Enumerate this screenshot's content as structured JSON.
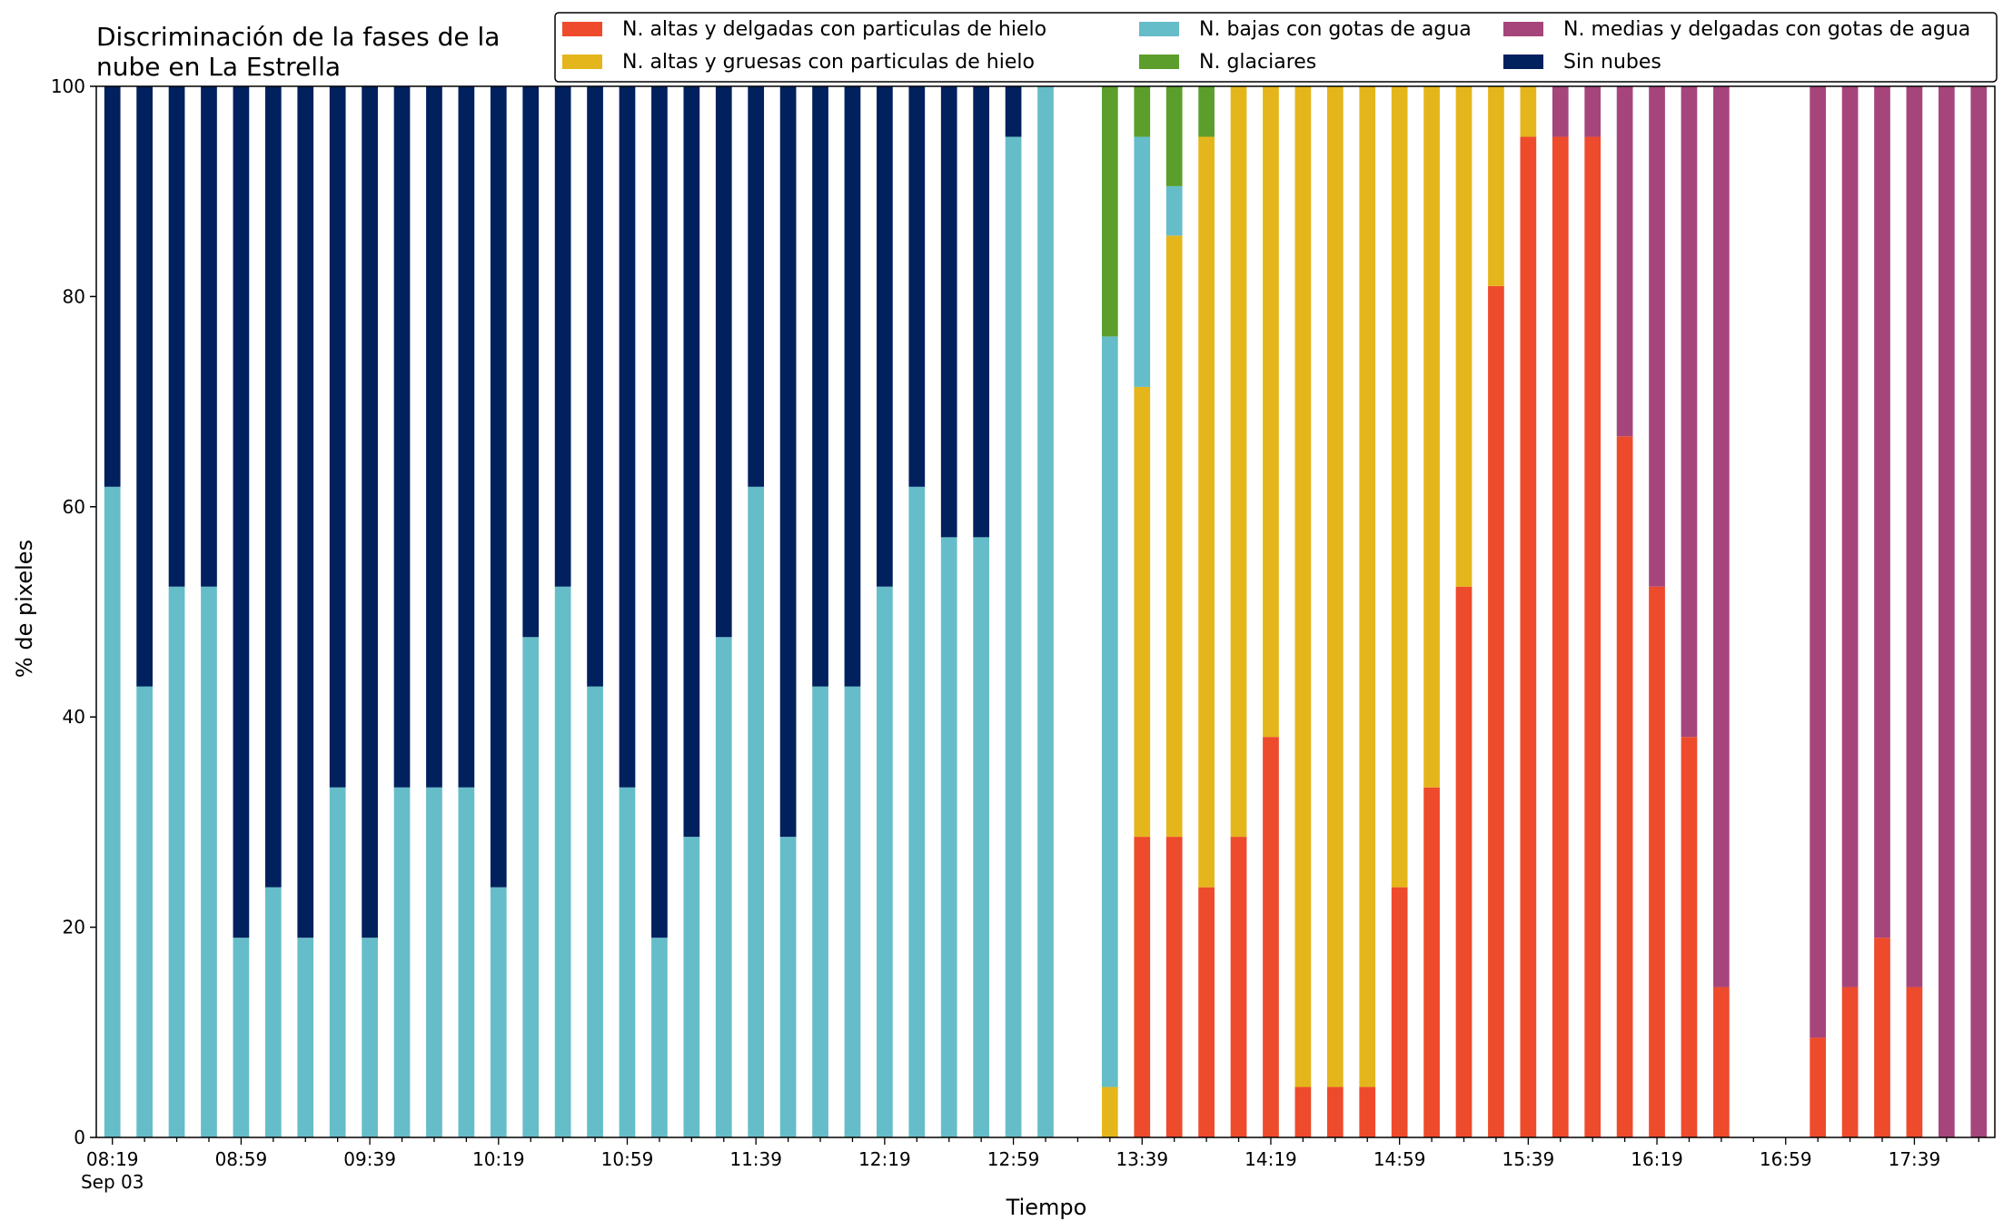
{
  "chart_data": {
    "type": "bar",
    "stacked": true,
    "title_lines": [
      "Discriminación de la fases de la",
      "nube en La Estrella"
    ],
    "xlabel": "Tiempo",
    "ylabel": "% de pixeles",
    "ylim": [
      0,
      100
    ],
    "yticks": [
      0,
      20,
      40,
      60,
      80,
      100
    ],
    "grid": false,
    "legend_placement": "top-right",
    "x_start": "08:19",
    "x_interval_minutes": 10,
    "x_tick_labels": [
      "08:19",
      "08:59",
      "09:39",
      "10:19",
      "10:59",
      "11:39",
      "12:19",
      "12:59",
      "13:39",
      "14:19",
      "14:59",
      "15:39",
      "16:19",
      "16:59",
      "17:39"
    ],
    "x_sublabel": "Sep 03",
    "categories": [
      "08:19",
      "08:29",
      "08:39",
      "08:49",
      "08:59",
      "09:09",
      "09:19",
      "09:29",
      "09:39",
      "09:49",
      "09:59",
      "10:09",
      "10:19",
      "10:29",
      "10:39",
      "10:49",
      "10:59",
      "11:09",
      "11:19",
      "11:29",
      "11:39",
      "11:49",
      "11:59",
      "12:09",
      "12:19",
      "12:29",
      "12:39",
      "12:49",
      "12:59",
      "13:09",
      "13:19",
      "13:29",
      "13:39",
      "13:49",
      "13:59",
      "14:09",
      "14:19",
      "14:29",
      "14:39",
      "14:49",
      "14:59",
      "15:09",
      "15:19",
      "15:29",
      "15:39",
      "15:49",
      "15:59",
      "16:09",
      "16:19",
      "16:29",
      "16:39",
      "16:49",
      "16:59",
      "17:09",
      "17:19",
      "17:29",
      "17:39",
      "17:49",
      "17:59"
    ],
    "series": [
      {
        "name": "N. altas y delgadas con particulas de hielo",
        "color": "#ee4a2c",
        "values": [
          0,
          0,
          0,
          0,
          0,
          0,
          0,
          0,
          0,
          0,
          0,
          0,
          0,
          0,
          0,
          0,
          0,
          0,
          0,
          0,
          0,
          0,
          0,
          0,
          0,
          0,
          0,
          0,
          0,
          0,
          0,
          0,
          28.6,
          28.6,
          23.8,
          28.6,
          38.1,
          4.8,
          4.8,
          4.8,
          23.8,
          33.3,
          52.4,
          81.0,
          95.2,
          95.2,
          95.2,
          66.7,
          52.4,
          38.1,
          14.3,
          0,
          0,
          9.5,
          14.3,
          19.0,
          14.3,
          0,
          0
        ]
      },
      {
        "name": "N. altas y gruesas con particulas de hielo",
        "color": "#e5b61b",
        "values": [
          0,
          0,
          0,
          0,
          0,
          0,
          0,
          0,
          0,
          0,
          0,
          0,
          0,
          0,
          0,
          0,
          0,
          0,
          0,
          0,
          0,
          0,
          0,
          0,
          0,
          0,
          0,
          0,
          0,
          0,
          0,
          4.8,
          42.8,
          57.2,
          71.4,
          71.4,
          61.9,
          95.2,
          95.2,
          95.2,
          76.2,
          66.7,
          47.6,
          19.0,
          4.8,
          0,
          0,
          0,
          0,
          0,
          0,
          0,
          0,
          0,
          0,
          0,
          0,
          0,
          0
        ]
      },
      {
        "name": "N. bajas con gotas de agua",
        "color": "#65bdc9",
        "values": [
          61.9,
          42.9,
          52.4,
          52.4,
          19.0,
          23.8,
          19.0,
          33.3,
          19.0,
          33.3,
          33.3,
          33.3,
          23.8,
          47.6,
          52.4,
          42.9,
          33.3,
          19.0,
          28.6,
          47.6,
          61.9,
          28.6,
          42.9,
          42.9,
          52.4,
          61.9,
          57.1,
          57.1,
          95.2,
          100,
          0,
          71.4,
          23.8,
          4.7,
          0,
          0,
          0,
          0,
          0,
          0,
          0,
          0,
          0,
          0,
          0,
          0,
          0,
          0,
          0,
          0,
          0,
          0,
          0,
          0,
          0,
          0,
          0,
          0,
          0
        ]
      },
      {
        "name": "N. medias y delgadas con gotas de agua",
        "color": "#a6457c",
        "values": [
          0,
          0,
          0,
          0,
          0,
          0,
          0,
          0,
          0,
          0,
          0,
          0,
          0,
          0,
          0,
          0,
          0,
          0,
          0,
          0,
          0,
          0,
          0,
          0,
          0,
          0,
          0,
          0,
          0,
          0,
          0,
          0,
          0,
          0,
          0,
          0,
          0,
          0,
          0,
          0,
          0,
          0,
          0,
          0,
          0,
          4.8,
          4.8,
          33.3,
          47.6,
          61.9,
          85.7,
          0,
          0,
          90.5,
          85.7,
          81.0,
          85.7,
          100,
          100
        ]
      },
      {
        "name": "N. glaciares",
        "color": "#5c9e2c",
        "values": [
          0,
          0,
          0,
          0,
          0,
          0,
          0,
          0,
          0,
          0,
          0,
          0,
          0,
          0,
          0,
          0,
          0,
          0,
          0,
          0,
          0,
          0,
          0,
          0,
          0,
          0,
          0,
          0,
          0,
          0,
          0,
          23.8,
          4.8,
          9.5,
          4.8,
          0,
          0,
          0,
          0,
          0,
          0,
          0,
          0,
          0,
          0,
          0,
          0,
          0,
          0,
          0,
          0,
          0,
          0,
          0,
          0,
          0,
          0,
          0,
          0
        ]
      },
      {
        "name": "Sin nubes",
        "color": "#00205e",
        "values": [
          38.1,
          57.1,
          47.6,
          47.6,
          81.0,
          76.2,
          81.0,
          66.7,
          81.0,
          66.7,
          66.7,
          66.7,
          76.2,
          52.4,
          47.6,
          57.1,
          66.7,
          81.0,
          71.4,
          52.4,
          38.1,
          71.4,
          57.1,
          57.1,
          47.6,
          38.1,
          42.9,
          42.9,
          4.8,
          0,
          0,
          0,
          0,
          0,
          0,
          0,
          0,
          0,
          0,
          0,
          0,
          0,
          0,
          0,
          0,
          0,
          0,
          0,
          0,
          0,
          0,
          0,
          0,
          0,
          0,
          0,
          0,
          0,
          0
        ]
      }
    ],
    "stack_order": [
      "N. altas y delgadas con particulas de hielo",
      "N. altas y gruesas con particulas de hielo",
      "N. bajas con gotas de agua",
      "N. medias y delgadas con gotas de agua",
      "N. glaciares",
      "Sin nubes"
    ],
    "legend": [
      [
        "N. altas y delgadas con particulas de hielo",
        "N. altas y gruesas con particulas de hielo"
      ],
      [
        "N. bajas con gotas de agua",
        "N. glaciares"
      ],
      [
        "N. medias y delgadas con gotas de agua",
        "Sin nubes"
      ]
    ]
  }
}
